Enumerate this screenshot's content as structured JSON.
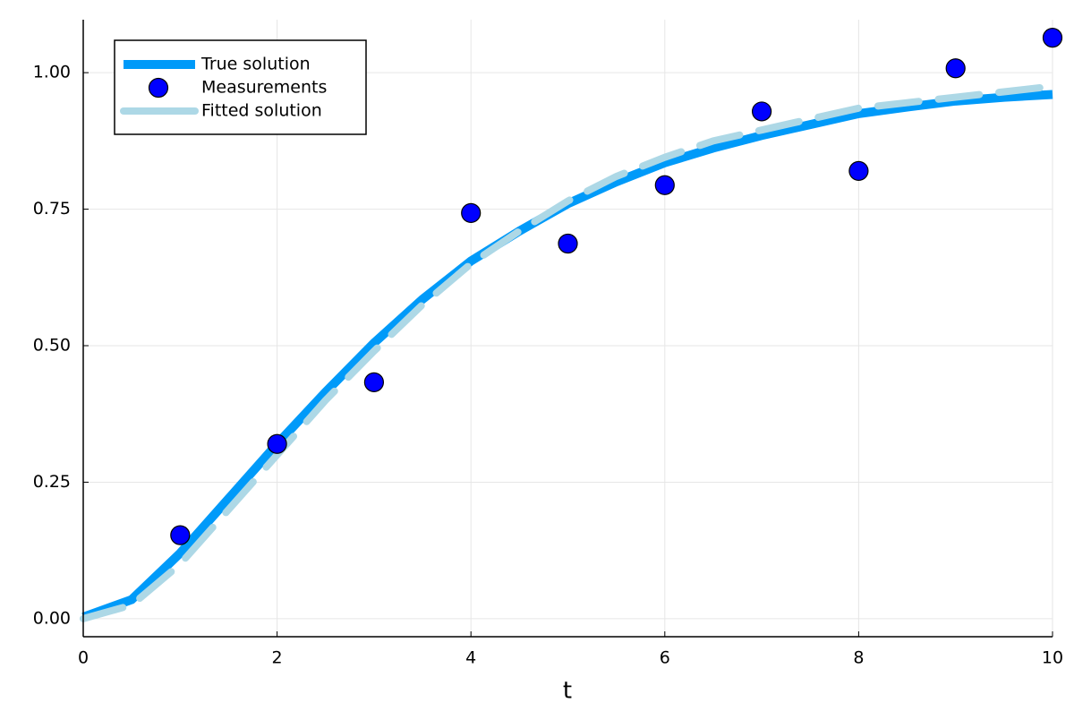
{
  "chart_data": {
    "type": "line",
    "xlabel": "t",
    "xlim": [
      0,
      10
    ],
    "ylim": [
      -0.033,
      1.097
    ],
    "xticks": [
      0,
      2,
      4,
      6,
      8,
      10
    ],
    "yticks": [
      {
        "value": 0,
        "label": "0.00"
      },
      {
        "value": 0.25,
        "label": "0.25"
      },
      {
        "value": 0.5,
        "label": "0.50"
      },
      {
        "value": 0.75,
        "label": "0.75"
      },
      {
        "value": 1,
        "label": "1.00"
      }
    ],
    "grid": true,
    "legend": "top-left",
    "series": [
      {
        "name": "True solution",
        "kind": "line",
        "color": "#009af9",
        "dash": false,
        "x": [
          0,
          0.5,
          1,
          1.5,
          2,
          2.5,
          3,
          3.5,
          4,
          4.5,
          5,
          5.5,
          6,
          6.5,
          7,
          7.5,
          8,
          8.5,
          9,
          9.5,
          10
        ],
        "values": [
          0.003,
          0.035,
          0.12,
          0.22,
          0.32,
          0.415,
          0.505,
          0.585,
          0.655,
          0.71,
          0.76,
          0.8,
          0.835,
          0.862,
          0.885,
          0.905,
          0.925,
          0.937,
          0.948,
          0.955,
          0.96
        ]
      },
      {
        "name": "Measurements",
        "kind": "scatter",
        "color": "#0000ff",
        "x": [
          1,
          2,
          3,
          4,
          5,
          6,
          7,
          8,
          9,
          10
        ],
        "values": [
          0.153,
          0.32,
          0.433,
          0.743,
          0.687,
          0.794,
          0.929,
          0.82,
          1.008,
          1.064
        ]
      },
      {
        "name": "Fitted solution",
        "kind": "line",
        "color": "#add8e6",
        "dash": true,
        "x": [
          0,
          0.5,
          1,
          1.5,
          2,
          2.5,
          3,
          3.5,
          4,
          4.5,
          5,
          5.5,
          6,
          6.5,
          7,
          7.5,
          8,
          8.5,
          9,
          9.5,
          10
        ],
        "values": [
          0,
          0.025,
          0.1,
          0.2,
          0.3,
          0.4,
          0.49,
          0.575,
          0.65,
          0.71,
          0.765,
          0.81,
          0.845,
          0.875,
          0.895,
          0.915,
          0.935,
          0.945,
          0.955,
          0.965,
          0.975
        ]
      }
    ]
  }
}
